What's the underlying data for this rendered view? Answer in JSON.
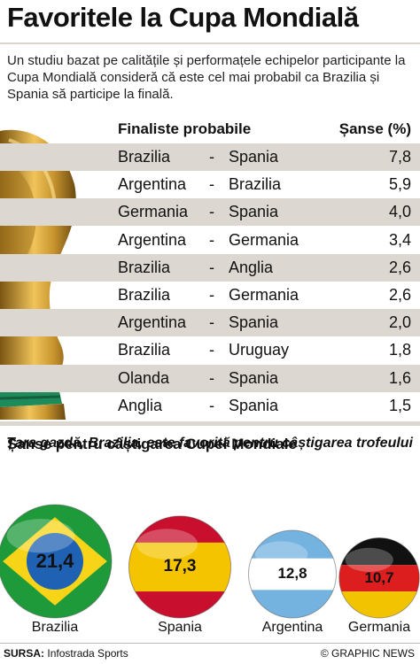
{
  "title": "Favoritele la Cupa Mondială",
  "intro": "Un studiu bazat pe calitățile și performațele echipelor participante la Cupa Mondială consideră că este cel mai probabil ca Brazilia și Spania să participe la finală.",
  "chart_data": [
    {
      "type": "table",
      "columns": [
        "Finaliste probabile",
        "Șanse (%)"
      ],
      "rows": [
        {
          "team1": "Brazilia",
          "team2": "Spania",
          "value": "7,8"
        },
        {
          "team1": "Argentina",
          "team2": "Brazilia",
          "value": "5,9"
        },
        {
          "team1": "Germania",
          "team2": "Spania",
          "value": "4,0"
        },
        {
          "team1": "Argentina",
          "team2": "Germania",
          "value": "3,4"
        },
        {
          "team1": "Brazilia",
          "team2": "Anglia",
          "value": "2,6"
        },
        {
          "team1": "Brazilia",
          "team2": "Germania",
          "value": "2,6"
        },
        {
          "team1": "Argentina",
          "team2": "Spania",
          "value": "2,0"
        },
        {
          "team1": "Brazilia",
          "team2": "Uruguay",
          "value": "1,8"
        },
        {
          "team1": "Olanda",
          "team2": "Spania",
          "value": "1,6"
        },
        {
          "team1": "Anglia",
          "team2": "Spania",
          "value": "1,5"
        }
      ],
      "separator": "-"
    },
    {
      "type": "bubble",
      "title": "Șanse pentru câștigarea Cupei Mondiale",
      "annotation": "Țara gazdă, Brazilia, este favorită pentru câștigarea trofeului",
      "categories": [
        "Brazilia",
        "Spania",
        "Argentina",
        "Germania"
      ],
      "values": [
        21.4,
        17.3,
        12.8,
        10.7
      ],
      "labels": [
        "21,4",
        "17,3",
        "12,8",
        "10,7"
      ]
    }
  ],
  "source_label": "SURSA:",
  "source_value": "Infostrada Sports",
  "credit": "© GRAPHIC NEWS",
  "colors": {
    "shade": "#dcd8d1",
    "gold": "#c9952f",
    "brazil_green": "#1e9a3a",
    "brazil_yellow": "#f7d417",
    "brazil_blue": "#1f62b3",
    "spain_red": "#c8102e",
    "spain_yellow": "#f5c400",
    "argentina_blue": "#74b3e0",
    "germany_red": "#dd1e1e",
    "germany_gold": "#f2c300"
  }
}
